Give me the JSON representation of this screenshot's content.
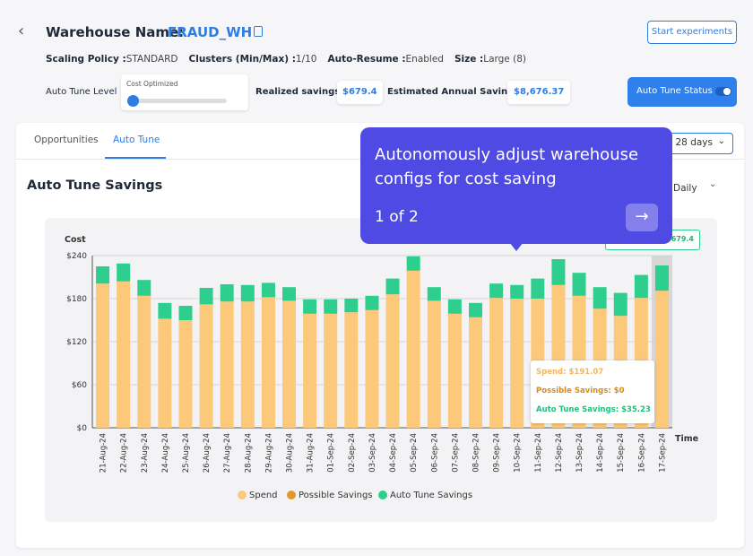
{
  "header": {
    "label": "Warehouse Name:",
    "name": "FRAUD_WH",
    "button": "Start experiments"
  },
  "details": [
    {
      "label": "Scaling Policy :",
      "value": "STANDARD"
    },
    {
      "label": "Clusters (Min/Max) :",
      "value": "1/10"
    },
    {
      "label": "Auto-Resume :",
      "value": "Enabled"
    },
    {
      "label": "Size :",
      "value": "Large (8)"
    }
  ],
  "auto_tune": {
    "level_label": "Auto Tune Level",
    "level": "Cost Optimized",
    "realized_label": "Realized savings:",
    "realized": "$679.4",
    "annual_label": "Estimated Annual Savings:",
    "annual": "$8,676.37",
    "status": "Auto Tune Status"
  },
  "tabs": [
    "Opportunities",
    "Auto Tune"
  ],
  "filters": {
    "range": "Last 28 days",
    "granularity": "Daily"
  },
  "section_title": "Auto Tune Savings",
  "badge": "$679.4",
  "onboarding": {
    "text": "Autonomously adjust warehouse configs for cost saving",
    "step": "1 of 2"
  },
  "hover": [
    {
      "label": "Spend:",
      "value": "$191.07"
    },
    {
      "label": "Possible Savings:",
      "value": "$0"
    },
    {
      "label": "Auto Tune Savings:",
      "value": "$35.23"
    }
  ],
  "chart_data": {
    "type": "stacked-bar",
    "y_label": "Cost",
    "x_label": "Time",
    "categories": [
      "21-Aug-24",
      "22-Aug-24",
      "23-Aug-24",
      "24-Aug-24",
      "25-Aug-24",
      "26-Aug-24",
      "27-Aug-24",
      "28-Aug-24",
      "29-Aug-24",
      "30-Aug-24",
      "31-Aug-24",
      "01-Sep-24",
      "02-Sep-24",
      "03-Sep-24",
      "04-Sep-24",
      "05-Sep-24",
      "06-Sep-24",
      "07-Sep-24",
      "08-Sep-24",
      "09-Sep-24",
      "10-Sep-24",
      "11-Sep-24",
      "12-Sep-24",
      "13-Sep-24",
      "14-Sep-24",
      "15-Sep-24",
      "16-Sep-24",
      "17-Sep-24"
    ],
    "series": [
      {
        "name": "Spend",
        "color": "#fcc97b",
        "values": [
          201,
          204,
          184,
          152,
          150,
          172,
          176,
          176,
          182,
          177,
          159,
          159,
          161,
          164,
          186,
          219,
          177,
          159,
          154,
          181,
          180,
          180,
          199,
          184,
          166,
          156,
          181,
          191.07
        ]
      },
      {
        "name": "Possible Savings",
        "color": "#e0982a",
        "values": [
          0,
          0,
          0,
          0,
          0,
          0,
          0,
          0,
          0,
          0,
          0,
          0,
          0,
          0,
          0,
          0,
          0,
          0,
          0,
          0,
          0,
          0,
          0,
          0,
          0,
          0,
          0,
          0
        ]
      },
      {
        "name": "Auto Tune Savings",
        "color": "#2ecf8e",
        "values": [
          24,
          25,
          22,
          22,
          20,
          23,
          24,
          23,
          20,
          19,
          20,
          20,
          19,
          20,
          22,
          20,
          19,
          20,
          20,
          20,
          19,
          28,
          36,
          32,
          30,
          32,
          32,
          35.23
        ]
      }
    ],
    "ylim": [
      0,
      240
    ],
    "yticks": [
      {
        "value": 0,
        "label": "$0"
      },
      {
        "value": 60,
        "label": "$60"
      },
      {
        "value": 120,
        "label": "$120"
      },
      {
        "value": 180,
        "label": "$180"
      },
      {
        "value": 240,
        "label": "$240"
      }
    ],
    "grid": true
  }
}
